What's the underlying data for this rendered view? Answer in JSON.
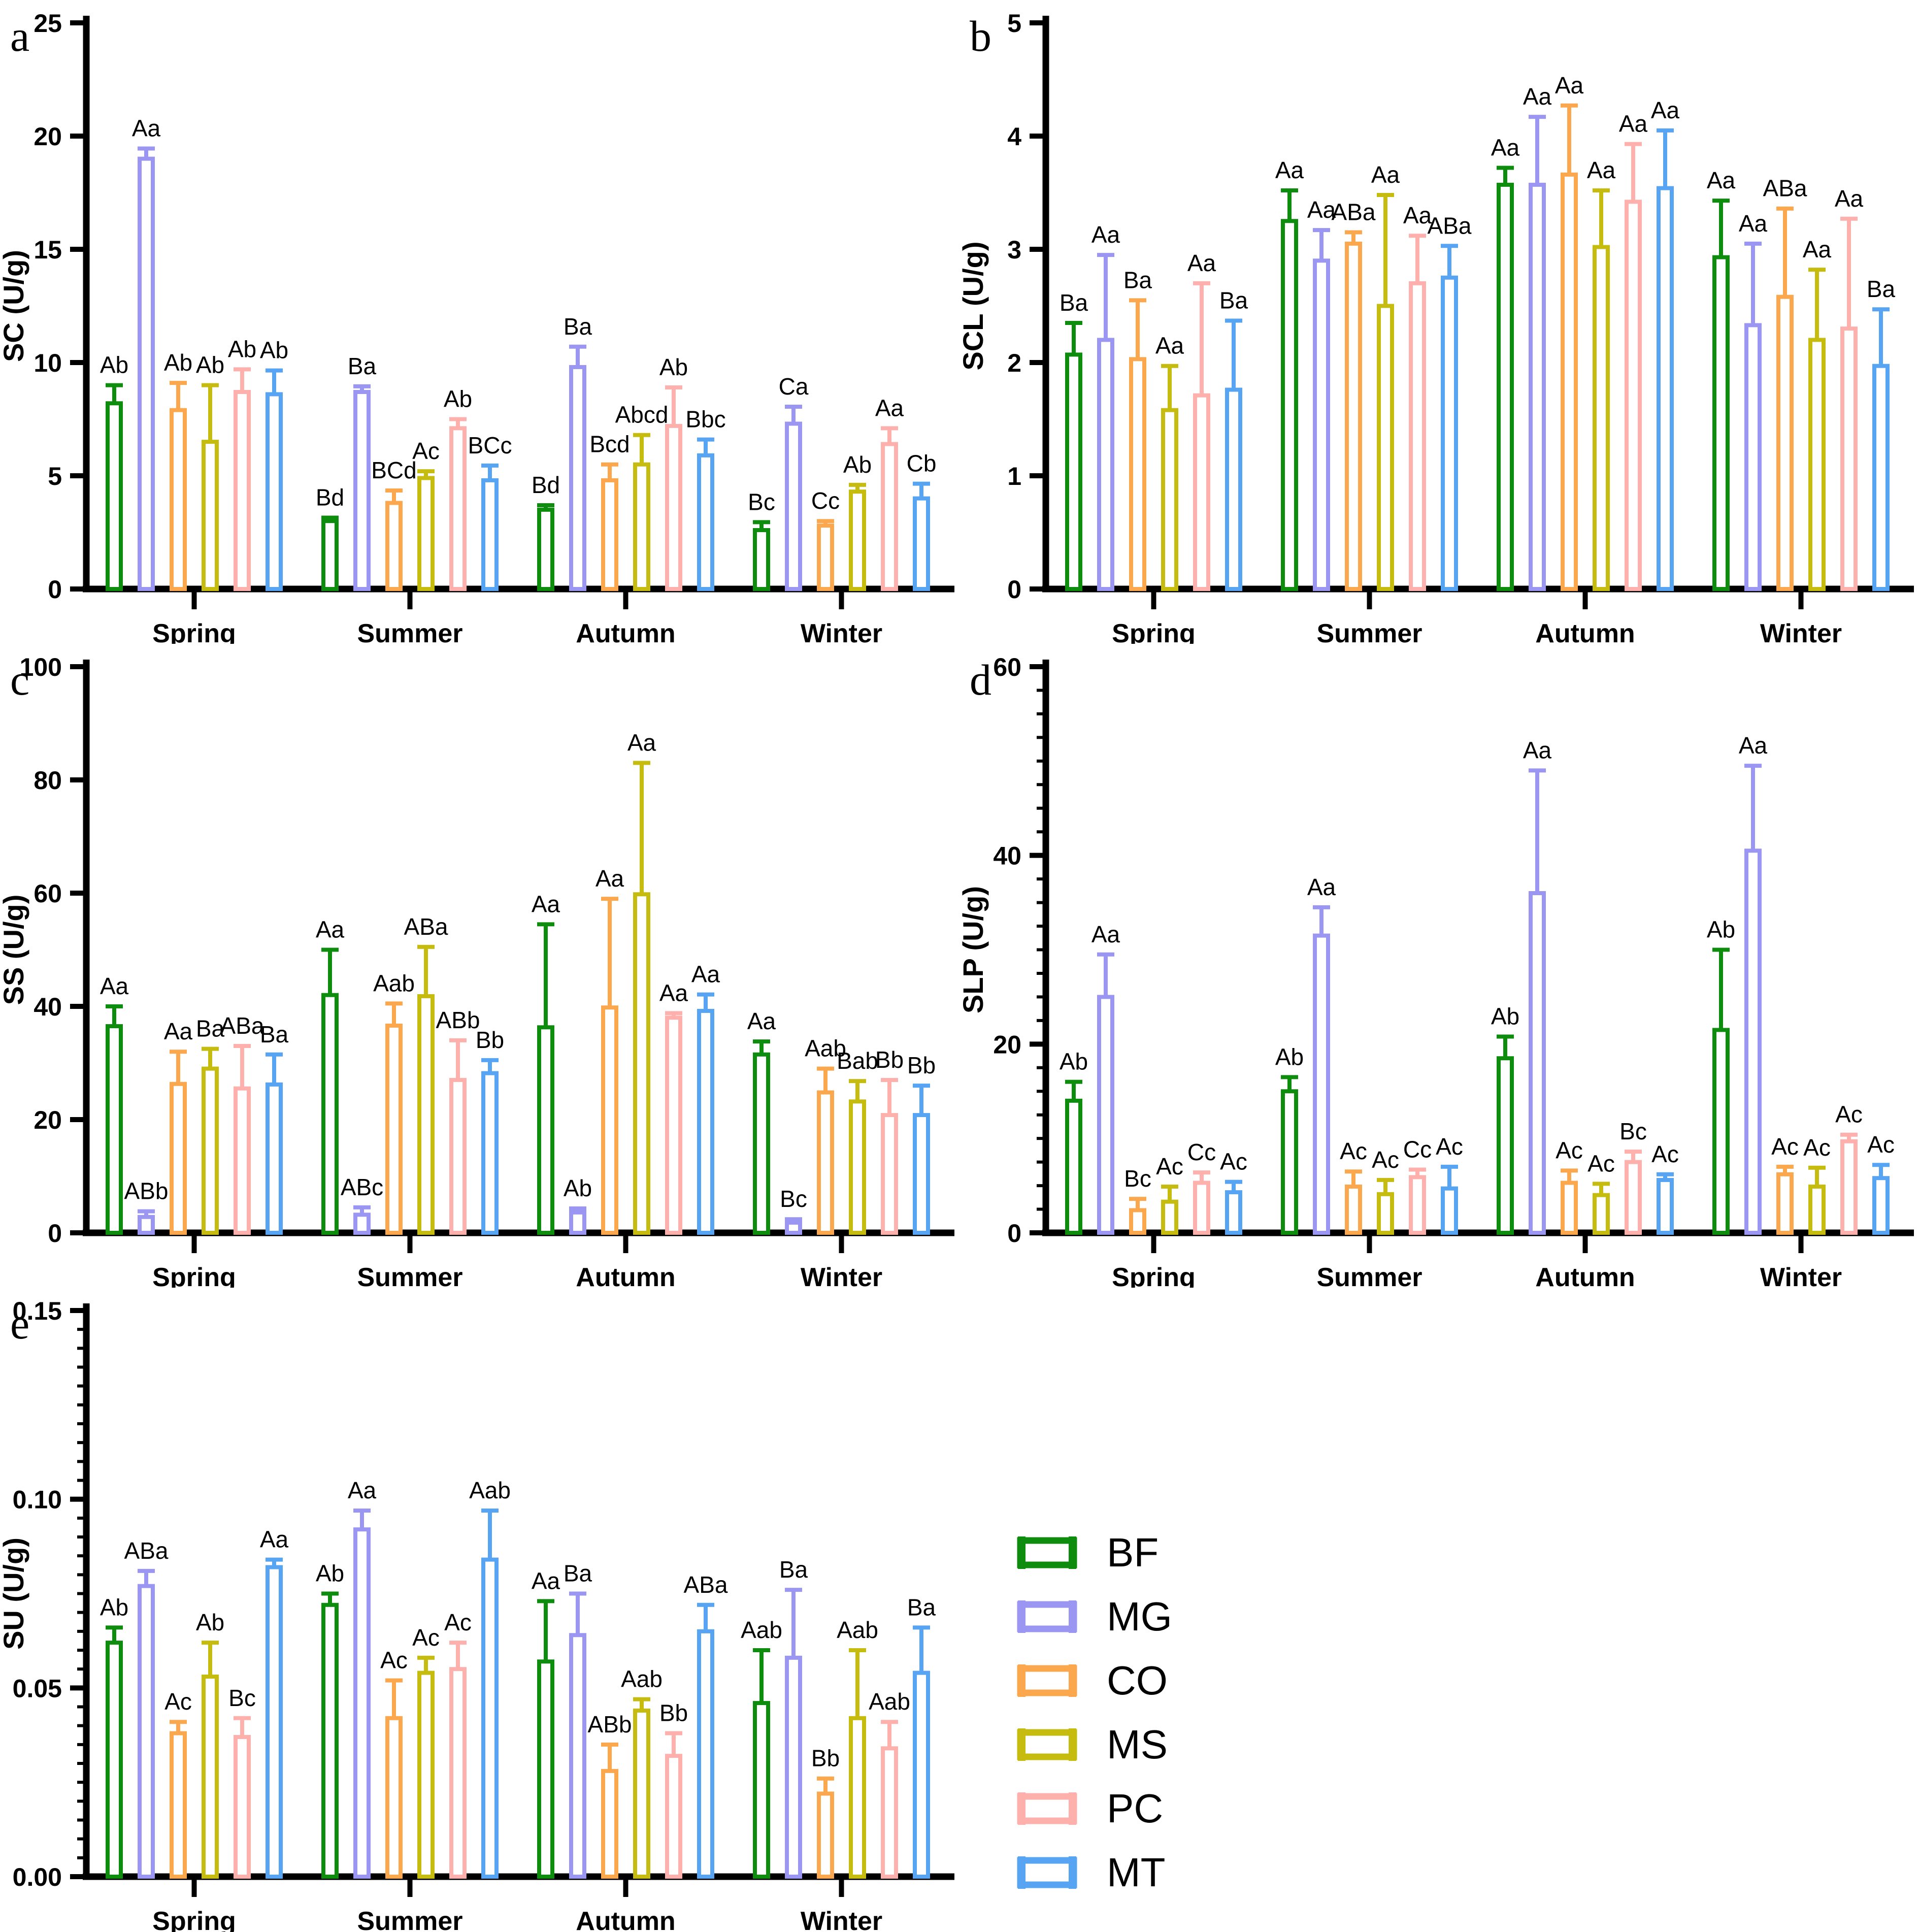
{
  "figure_title": "",
  "colors": {
    "axis": "#000000",
    "text": "#000000",
    "background": "#ffffff"
  },
  "legend": {
    "entries": [
      {
        "label": "BF",
        "color": "#0e8c0e"
      },
      {
        "label": "MG",
        "color": "#9a96f2"
      },
      {
        "label": "CO",
        "color": "#fba74e"
      },
      {
        "label": "MS",
        "color": "#c5bc0f"
      },
      {
        "label": "PC",
        "color": "#feb0ad"
      },
      {
        "label": "MT",
        "color": "#56a4f2"
      }
    ]
  },
  "chart_data": [
    {
      "id": "a",
      "type": "bar",
      "panel_letter": "a",
      "ylabel": "SC (U/g)",
      "ylim": [
        0,
        25
      ],
      "yticks": [
        0,
        5,
        10,
        15,
        20,
        25
      ],
      "ytick_labels": [
        "0",
        "5",
        "10",
        "15",
        "20",
        "25"
      ],
      "minor_tick_step": null,
      "grid": false,
      "legend_position": "none",
      "error_bars": "upper SD",
      "categories": [
        "Spring",
        "Summer",
        "Autumn",
        "Winter"
      ],
      "series": [
        {
          "name": "BF",
          "values": [
            8.2,
            3.0,
            3.5,
            2.6
          ],
          "errors": [
            0.8,
            0.15,
            0.2,
            0.35
          ],
          "sig_labels": [
            "Ab",
            "Bd",
            "Bd",
            "Bc"
          ]
        },
        {
          "name": "MG",
          "values": [
            19.0,
            8.7,
            9.8,
            7.3
          ],
          "errors": [
            0.45,
            0.25,
            0.9,
            0.75
          ],
          "sig_labels": [
            "Aa",
            "Ba",
            "Ba",
            "Ca"
          ]
        },
        {
          "name": "CO",
          "values": [
            7.9,
            3.8,
            4.8,
            2.8
          ],
          "errors": [
            1.2,
            0.55,
            0.7,
            0.2
          ],
          "sig_labels": [
            "Ab",
            "BCd",
            "Bcd",
            "Cc"
          ]
        },
        {
          "name": "MS",
          "values": [
            6.5,
            4.9,
            5.5,
            4.3
          ],
          "errors": [
            2.5,
            0.3,
            1.3,
            0.3
          ],
          "sig_labels": [
            "Ab",
            "Ac",
            "Abcd",
            "Ab"
          ]
        },
        {
          "name": "PC",
          "values": [
            8.7,
            7.1,
            7.2,
            6.4
          ],
          "errors": [
            1.0,
            0.4,
            1.7,
            0.7
          ],
          "sig_labels": [
            "Ab",
            "Ab",
            "Ab",
            "Aa"
          ]
        },
        {
          "name": "MT",
          "values": [
            8.6,
            4.8,
            5.9,
            4.0
          ],
          "errors": [
            1.05,
            0.65,
            0.7,
            0.65
          ],
          "sig_labels": [
            "Ab",
            "BCc",
            "Bbc",
            "Cb"
          ]
        }
      ]
    },
    {
      "id": "b",
      "type": "bar",
      "panel_letter": "b",
      "ylabel": "SCL (U/g)",
      "ylim": [
        0,
        5
      ],
      "yticks": [
        0,
        1,
        2,
        3,
        4,
        5
      ],
      "ytick_labels": [
        "0",
        "1",
        "2",
        "3",
        "4",
        "5"
      ],
      "minor_tick_step": null,
      "grid": false,
      "legend_position": "none",
      "error_bars": "upper SD",
      "categories": [
        "Spring",
        "Summer",
        "Autumn",
        "Winter"
      ],
      "series": [
        {
          "name": "BF",
          "values": [
            2.07,
            3.25,
            3.57,
            2.93
          ],
          "errors": [
            0.28,
            0.27,
            0.15,
            0.5
          ],
          "sig_labels": [
            "Ba",
            "Aa",
            "Aa",
            "Aa"
          ]
        },
        {
          "name": "MG",
          "values": [
            2.2,
            2.9,
            3.57,
            2.33
          ],
          "errors": [
            0.75,
            0.27,
            0.6,
            0.72
          ],
          "sig_labels": [
            "Aa",
            "Aa",
            "Aa",
            "Aa"
          ]
        },
        {
          "name": "CO",
          "values": [
            2.03,
            3.05,
            3.66,
            2.58
          ],
          "errors": [
            0.52,
            0.1,
            0.61,
            0.78
          ],
          "sig_labels": [
            "Ba",
            "ABa",
            "Aa",
            "ABa"
          ]
        },
        {
          "name": "MS",
          "values": [
            1.58,
            2.5,
            3.02,
            2.2
          ],
          "errors": [
            0.39,
            0.98,
            0.5,
            0.62
          ],
          "sig_labels": [
            "Aa",
            "Aa",
            "Aa",
            "Aa"
          ]
        },
        {
          "name": "PC",
          "values": [
            1.71,
            2.7,
            3.42,
            2.3
          ],
          "errors": [
            0.99,
            0.42,
            0.51,
            0.97
          ],
          "sig_labels": [
            "Aa",
            "Aa",
            "Aa",
            "Aa"
          ]
        },
        {
          "name": "MT",
          "values": [
            1.76,
            2.75,
            3.54,
            1.97
          ],
          "errors": [
            0.61,
            0.28,
            0.51,
            0.5
          ],
          "sig_labels": [
            "Ba",
            "ABa",
            "Aa",
            "Ba"
          ]
        }
      ]
    },
    {
      "id": "c",
      "type": "bar",
      "panel_letter": "c",
      "ylabel": "SS (U/g)",
      "ylim": [
        0,
        100
      ],
      "yticks": [
        0,
        20,
        40,
        60,
        80,
        100
      ],
      "ytick_labels": [
        "0",
        "20",
        "40",
        "60",
        "80",
        "100"
      ],
      "minor_tick_step": null,
      "grid": false,
      "legend_position": "none",
      "error_bars": "upper SD",
      "categories": [
        "Spring",
        "Summer",
        "Autumn",
        "Winter"
      ],
      "series": [
        {
          "name": "BF",
          "values": [
            36.5,
            42.0,
            36.3,
            31.5
          ],
          "errors": [
            3.5,
            8.0,
            18.2,
            2.3
          ],
          "sig_labels": [
            "Aa",
            "Aa",
            "Aa",
            "Aa"
          ]
        },
        {
          "name": "MG",
          "values": [
            2.8,
            3.2,
            3.6,
            1.8
          ],
          "errors": [
            1.0,
            1.3,
            0.7,
            0.6
          ],
          "sig_labels": [
            "ABb",
            "ABc",
            "Ab",
            "Bc"
          ]
        },
        {
          "name": "CO",
          "values": [
            26.3,
            36.6,
            39.8,
            24.8
          ],
          "errors": [
            5.7,
            3.9,
            19.2,
            4.2
          ],
          "sig_labels": [
            "Aa",
            "Aab",
            "Aa",
            "Aab"
          ]
        },
        {
          "name": "MS",
          "values": [
            29.0,
            41.8,
            59.8,
            23.2
          ],
          "errors": [
            3.5,
            8.7,
            23.2,
            3.6
          ],
          "sig_labels": [
            "Ba",
            "ABa",
            "Aa",
            "Bab"
          ]
        },
        {
          "name": "PC",
          "values": [
            25.5,
            27.0,
            38.0,
            20.8
          ],
          "errors": [
            7.5,
            7.0,
            0.8,
            6.2
          ],
          "sig_labels": [
            "ABa",
            "ABb",
            "Aa",
            "Bb"
          ]
        },
        {
          "name": "MT",
          "values": [
            26.2,
            28.2,
            39.2,
            20.8
          ],
          "errors": [
            5.3,
            2.3,
            2.9,
            5.2
          ],
          "sig_labels": [
            "Ba",
            "Bb",
            "Aa",
            "Bb"
          ]
        }
      ]
    },
    {
      "id": "d",
      "type": "bar",
      "panel_letter": "d",
      "ylabel": "SLP (U/g)",
      "ylim": [
        0,
        60
      ],
      "yticks": [
        0,
        20,
        40,
        60
      ],
      "ytick_labels": [
        "0",
        "20",
        "40",
        "60"
      ],
      "minor_tick_step": 2.5,
      "grid": false,
      "legend_position": "none",
      "error_bars": "upper SD",
      "categories": [
        "Spring",
        "Summer",
        "Autumn",
        "Winter"
      ],
      "series": [
        {
          "name": "BF",
          "values": [
            14.0,
            15.0,
            18.5,
            21.5
          ],
          "errors": [
            2.0,
            1.5,
            2.3,
            8.5
          ],
          "sig_labels": [
            "Ab",
            "Ab",
            "Ab",
            "Ab"
          ]
        },
        {
          "name": "MG",
          "values": [
            25.0,
            31.5,
            36.0,
            40.5
          ],
          "errors": [
            4.5,
            3.0,
            13.0,
            9.0
          ],
          "sig_labels": [
            "Aa",
            "Aa",
            "Aa",
            "Aa"
          ]
        },
        {
          "name": "CO",
          "values": [
            2.4,
            4.9,
            5.3,
            6.2
          ],
          "errors": [
            1.2,
            1.6,
            1.3,
            0.8
          ],
          "sig_labels": [
            "Bc",
            "Ac",
            "Ac",
            "Ac"
          ]
        },
        {
          "name": "MS",
          "values": [
            3.3,
            4.1,
            4.0,
            4.9
          ],
          "errors": [
            1.6,
            1.5,
            1.2,
            2.0
          ],
          "sig_labels": [
            "Ac",
            "Ac",
            "Ac",
            "Ac"
          ]
        },
        {
          "name": "PC",
          "values": [
            5.3,
            5.9,
            7.5,
            9.7
          ],
          "errors": [
            1.1,
            0.8,
            1.1,
            0.7
          ],
          "sig_labels": [
            "Cc",
            "Cc",
            "Bc",
            "Ac"
          ]
        },
        {
          "name": "MT",
          "values": [
            4.3,
            4.7,
            5.6,
            5.8
          ],
          "errors": [
            1.1,
            2.3,
            0.6,
            1.4
          ],
          "sig_labels": [
            "Ac",
            "Ac",
            "Ac",
            "Ac"
          ]
        }
      ]
    },
    {
      "id": "e",
      "type": "bar",
      "panel_letter": "e",
      "ylabel": "SU (U/g)",
      "ylim": [
        0,
        0.15
      ],
      "yticks": [
        0,
        0.05,
        0.1,
        0.15
      ],
      "ytick_labels": [
        "0.00",
        "0.05",
        "0.10",
        "0.15"
      ],
      "minor_tick_step": 0.005,
      "grid": false,
      "legend_position": "none",
      "error_bars": "upper SD",
      "categories": [
        "Spring",
        "Summer",
        "Autumn",
        "Winter"
      ],
      "series": [
        {
          "name": "BF",
          "values": [
            0.062,
            0.072,
            0.057,
            0.046
          ],
          "errors": [
            0.004,
            0.003,
            0.016,
            0.014
          ],
          "sig_labels": [
            "Ab",
            "Ab",
            "Aa",
            "Aab"
          ]
        },
        {
          "name": "MG",
          "values": [
            0.077,
            0.092,
            0.064,
            0.058
          ],
          "errors": [
            0.004,
            0.005,
            0.011,
            0.018
          ],
          "sig_labels": [
            "ABa",
            "Aa",
            "Ba",
            "Ba"
          ]
        },
        {
          "name": "CO",
          "values": [
            0.038,
            0.042,
            0.028,
            0.022
          ],
          "errors": [
            0.003,
            0.01,
            0.007,
            0.004
          ],
          "sig_labels": [
            "Ac",
            "Ac",
            "ABb",
            "Bb"
          ]
        },
        {
          "name": "MS",
          "values": [
            0.053,
            0.054,
            0.044,
            0.042
          ],
          "errors": [
            0.009,
            0.004,
            0.003,
            0.018
          ],
          "sig_labels": [
            "Ab",
            "Ac",
            "Aab",
            "Aab"
          ]
        },
        {
          "name": "PC",
          "values": [
            0.037,
            0.055,
            0.032,
            0.034
          ],
          "errors": [
            0.005,
            0.007,
            0.006,
            0.007
          ],
          "sig_labels": [
            "Bc",
            "Ac",
            "Bb",
            "Aab"
          ]
        },
        {
          "name": "MT",
          "values": [
            0.082,
            0.084,
            0.065,
            0.054
          ],
          "errors": [
            0.002,
            0.013,
            0.007,
            0.012
          ],
          "sig_labels": [
            "Aa",
            "Aab",
            "ABa",
            "Ba"
          ]
        }
      ]
    }
  ]
}
